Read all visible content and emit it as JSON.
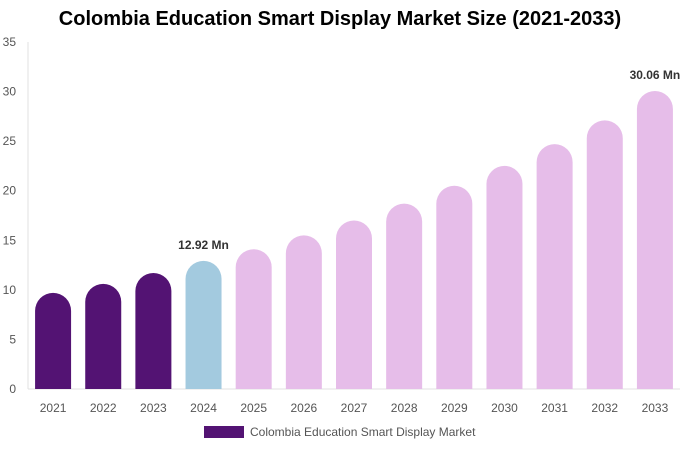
{
  "chart_data": {
    "type": "bar",
    "title": "Colombia Education Smart Display Market Size (2021-2033)",
    "categories": [
      "2021",
      "2022",
      "2023",
      "2024",
      "2025",
      "2026",
      "2027",
      "2028",
      "2029",
      "2030",
      "2031",
      "2032",
      "2033"
    ],
    "series": [
      {
        "name": "Colombia Education Smart Display Market",
        "values": [
          9.7,
          10.6,
          11.7,
          12.92,
          14.1,
          15.5,
          17.0,
          18.7,
          20.5,
          22.5,
          24.7,
          27.1,
          30.06
        ]
      }
    ],
    "data_labels": [
      {
        "category": "2024",
        "text": "12.92 Mn"
      },
      {
        "category": "2033",
        "text": "30.06 Mn"
      }
    ],
    "ylim": [
      0,
      35
    ],
    "yticks": [
      "0",
      "5",
      "10",
      "15",
      "20",
      "25",
      "30",
      "35"
    ],
    "grid": false,
    "legend": "bottom",
    "colors": {
      "historical": "#531373",
      "base_year": "#a3cadf",
      "forecast": "#e6bde9"
    },
    "bar_color_groups": [
      "historical",
      "historical",
      "historical",
      "base_year",
      "forecast",
      "forecast",
      "forecast",
      "forecast",
      "forecast",
      "forecast",
      "forecast",
      "forecast",
      "forecast"
    ]
  }
}
